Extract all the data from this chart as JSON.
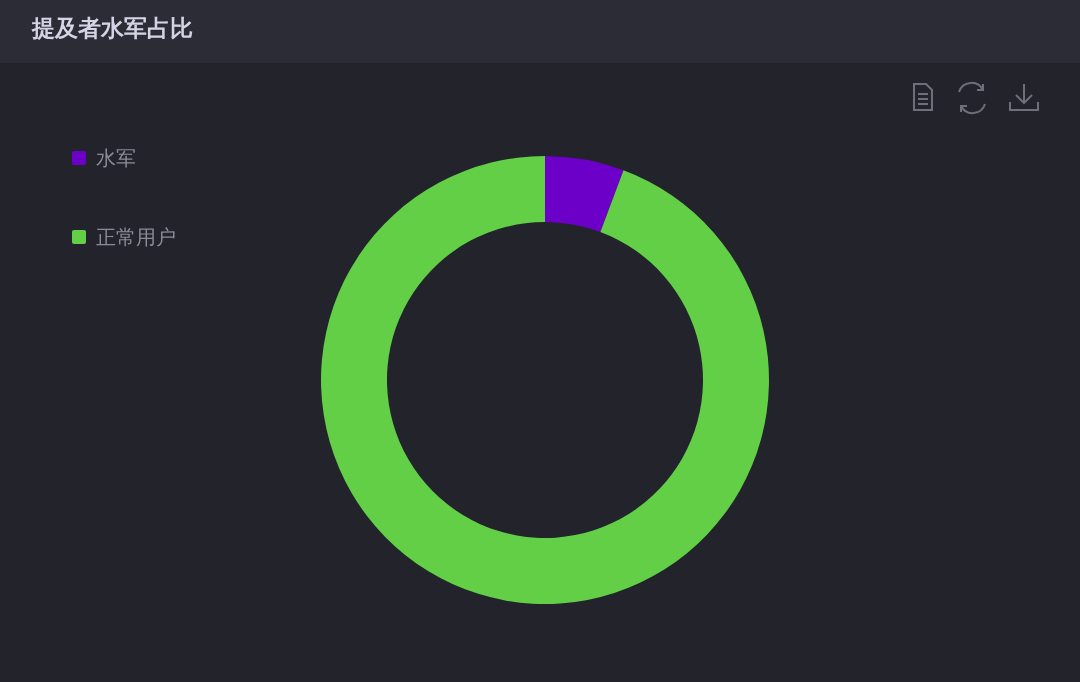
{
  "chart_data": {
    "type": "donut",
    "title": "提及者水军占比",
    "categories": [
      "水军",
      "正常用户"
    ],
    "values": [
      5.7,
      94.3
    ],
    "colors": [
      "#6c00c9",
      "#62cf47"
    ],
    "legend": "top left"
  }
}
